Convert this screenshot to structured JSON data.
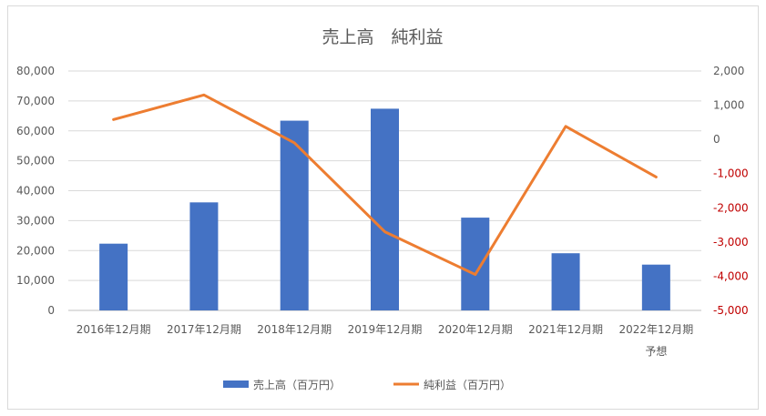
{
  "chart_data": {
    "type": "bar+line",
    "title": "売上高　純利益",
    "categories": [
      [
        "2016年12月期"
      ],
      [
        "2017年12月期"
      ],
      [
        "2018年12月期"
      ],
      [
        "2019年12月期"
      ],
      [
        "2020年12月期"
      ],
      [
        "2021年12月期"
      ],
      [
        "2022年12月期",
        "予想"
      ]
    ],
    "series": [
      {
        "name": "売上高（百万円）",
        "type": "bar",
        "axis": "left",
        "color": "#4472c4",
        "values": [
          22300,
          36100,
          63400,
          67400,
          31000,
          19100,
          15300
        ]
      },
      {
        "name": "純利益（百万円）",
        "type": "line",
        "axis": "right",
        "color": "#ed7d31",
        "values": [
          580,
          1300,
          -100,
          -2700,
          -3950,
          380,
          -1100
        ]
      }
    ],
    "y_left": {
      "ylim": [
        0,
        80000
      ],
      "ticks": [
        "0",
        "10,000",
        "20,000",
        "30,000",
        "40,000",
        "50,000",
        "60,000",
        "70,000",
        "80,000"
      ]
    },
    "y_right": {
      "ylim": [
        -5000,
        2000
      ],
      "ticks": [
        "-5,000",
        "-4,000",
        "-3,000",
        "-2,000",
        "-1,000",
        "0",
        "1,000",
        "2,000"
      ],
      "negative_color": "#c00000"
    },
    "grid": true,
    "legend": "bottom"
  }
}
